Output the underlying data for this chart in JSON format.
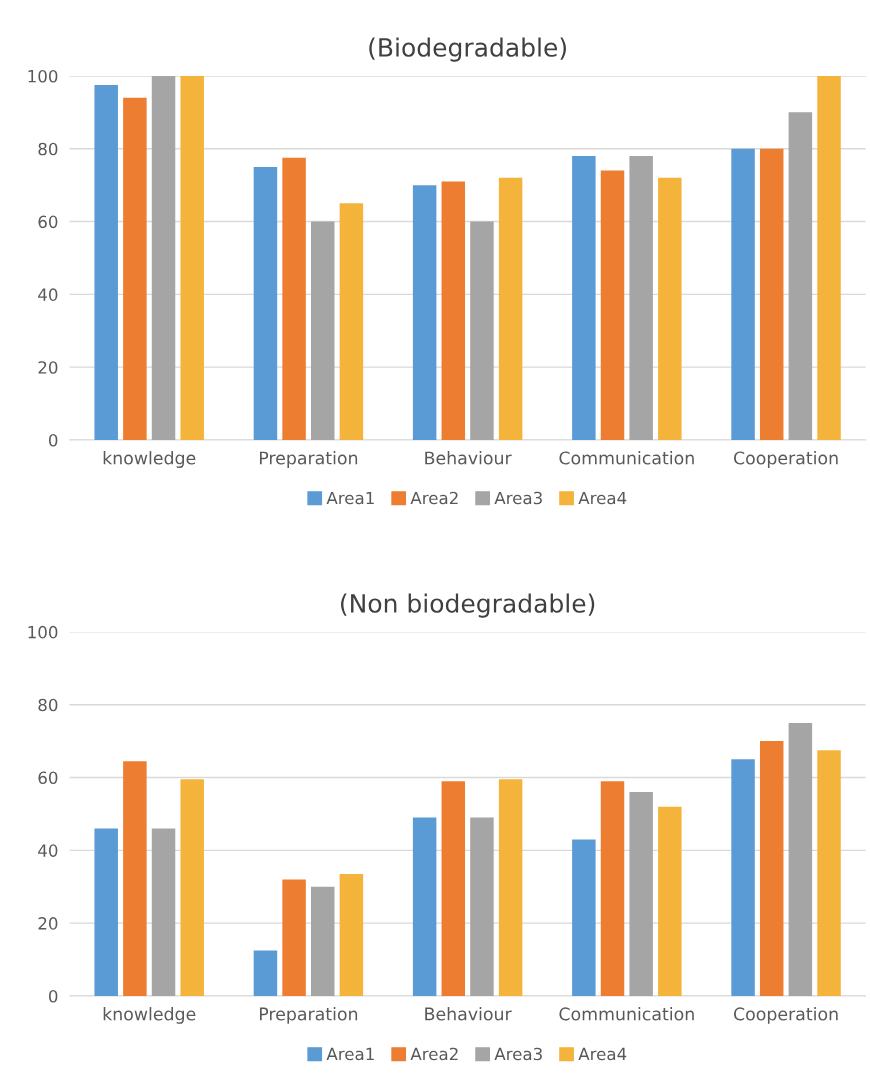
{
  "chart_data": [
    {
      "type": "bar",
      "title": "(Biodegradable)",
      "categories": [
        "knowledge",
        "Preparation",
        "Behaviour",
        "Communication",
        "Cooperation"
      ],
      "series": [
        {
          "name": "Area1",
          "color": "#5b9bd5",
          "values": [
            97.5,
            75,
            70,
            78,
            80
          ]
        },
        {
          "name": "Area2",
          "color": "#ed7d31",
          "values": [
            94,
            77.5,
            71,
            74,
            80
          ]
        },
        {
          "name": "Area3",
          "color": "#a5a5a5",
          "values": [
            100,
            60,
            60,
            78,
            90
          ]
        },
        {
          "name": "Area4",
          "color": "#f4b43b",
          "values": [
            100,
            65,
            72,
            72,
            100
          ]
        }
      ],
      "ylim": [
        0,
        100
      ],
      "yticks": [
        0,
        20,
        40,
        60,
        80,
        100
      ],
      "grid": "y",
      "legend": "bottom"
    },
    {
      "type": "bar",
      "title": "(Non biodegradable)",
      "categories": [
        "knowledge",
        "Preparation",
        "Behaviour",
        "Communication",
        "Cooperation"
      ],
      "series": [
        {
          "name": "Area1",
          "color": "#5b9bd5",
          "values": [
            46,
            12.5,
            49,
            43,
            65
          ]
        },
        {
          "name": "Area2",
          "color": "#ed7d31",
          "values": [
            64.5,
            32,
            59,
            59,
            70
          ]
        },
        {
          "name": "Area3",
          "color": "#a5a5a5",
          "values": [
            46,
            30,
            49,
            56,
            75
          ]
        },
        {
          "name": "Area4",
          "color": "#f4b43b",
          "values": [
            59.5,
            33.5,
            59.5,
            52,
            67.5
          ]
        }
      ],
      "ylim": [
        0,
        100
      ],
      "yticks": [
        0,
        20,
        40,
        60,
        80,
        100
      ],
      "grid": "y",
      "legend": "bottom"
    }
  ]
}
